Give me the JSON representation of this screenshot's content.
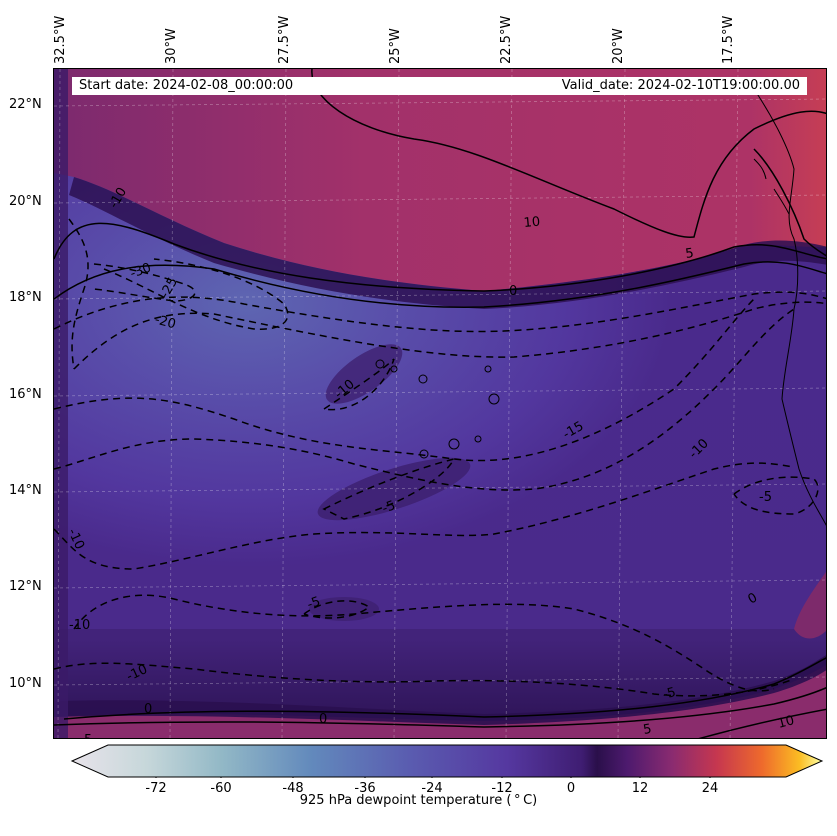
{
  "header": {
    "start_date": "Start date: 2024-02-08_00:00:00",
    "valid_date": "Valid_date: 2024-02-10T19:00:00.00"
  },
  "lon_labels": [
    "32.5°W",
    "30°W",
    "27.5°W",
    "25°W",
    "22.5°W",
    "20°W",
    "17.5°W"
  ],
  "lat_labels": [
    "22°N",
    "20°N",
    "18°N",
    "16°N",
    "14°N",
    "12°N",
    "10°N"
  ],
  "contour_labels": [
    "10",
    "5",
    "0",
    "-5",
    "-10",
    "-15",
    "-20",
    "-25",
    "-30"
  ],
  "colorbar": {
    "label": "925 hPa dewpoint temperature ($^\\circ$C)",
    "display_label": "925 hPa dewpoint temperature ( ° C)",
    "ticks": [
      "-72",
      "-60",
      "-48",
      "-36",
      "-24",
      "-12",
      "0",
      "12",
      "24"
    ],
    "range": [
      -84,
      36
    ],
    "colors": [
      "#e6e1e8",
      "#a9c9c6",
      "#6c9cc0",
      "#5a68b0",
      "#55389a",
      "#3a1b6b",
      "#4b1a6e",
      "#8e2a6f",
      "#c9374f",
      "#ee6a2e",
      "#fbb51f",
      "#fcffa4"
    ]
  },
  "map": {
    "extent_lon": [
      -32.5,
      -15.8
    ],
    "extent_lat": [
      8.9,
      22.8
    ],
    "fill_colors": {
      "dry_core": "#5a4fae",
      "mid": "#53329a",
      "moist": "#3e2270",
      "warm": "#a83468",
      "warm_edge": "#c23c57",
      "zero_band": "#2c1150"
    }
  },
  "chart_data": {
    "type": "heatmap",
    "title": "",
    "variable": "925 hPa dewpoint temperature",
    "units": "°C",
    "xlabel": "",
    "ylabel": "",
    "x_ticks": [
      "32.5°W",
      "30°W",
      "27.5°W",
      "25°W",
      "22.5°W",
      "20°W",
      "17.5°W"
    ],
    "y_ticks": [
      "22°N",
      "20°N",
      "18°N",
      "16°N",
      "14°N",
      "12°N",
      "10°N"
    ],
    "colorbar_range": [
      -84,
      36
    ],
    "contour_levels": [
      -30,
      -25,
      -20,
      -15,
      -10,
      -5,
      0,
      5,
      10
    ],
    "notes_values": {
      "north_band": 10,
      "south_band": 5,
      "central_dry_min": -30
    }
  }
}
